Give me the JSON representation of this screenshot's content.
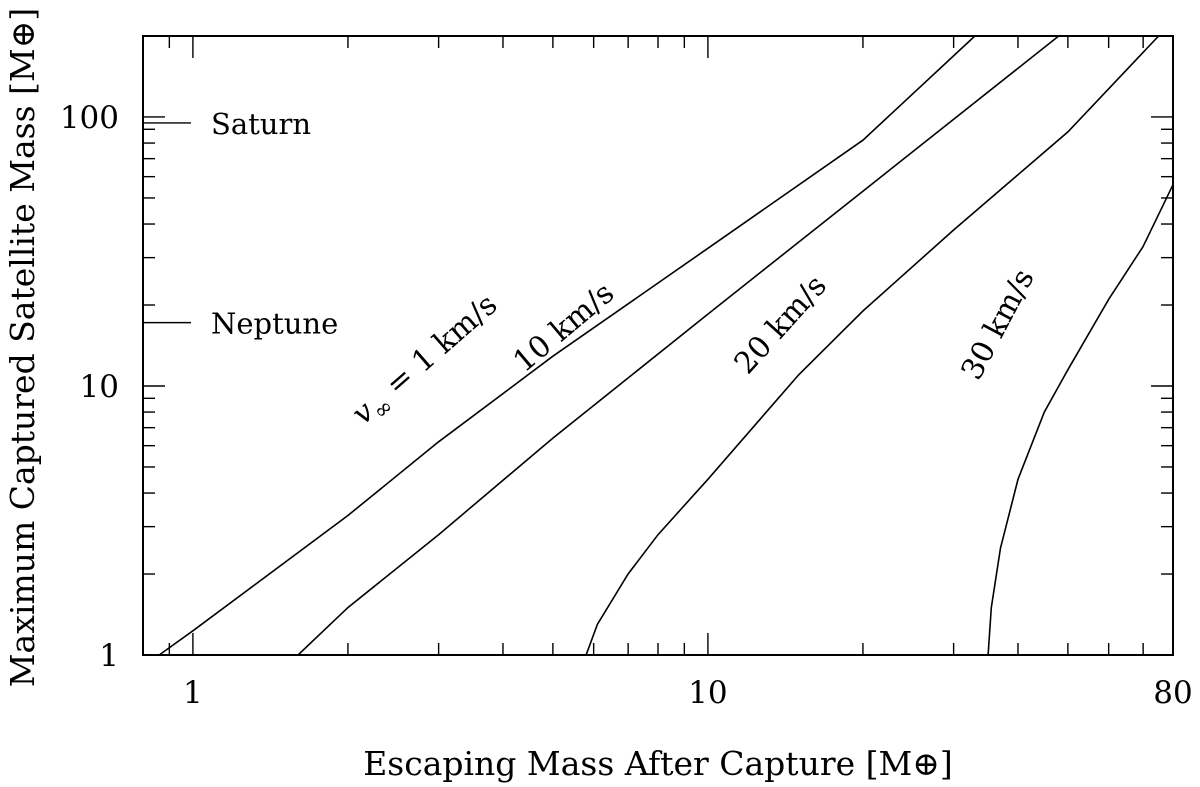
{
  "chart_data": {
    "type": "line",
    "title": "",
    "xlabel": "Escaping Mass After Capture [M⊕]",
    "ylabel": "Maximum Captured Satellite Mass [M⊕]",
    "x_scale": "log",
    "y_scale": "log",
    "xlim": [
      0.8,
      80
    ],
    "ylim": [
      1,
      200
    ],
    "x_ticks": [
      {
        "value": 1,
        "label": "1"
      },
      {
        "value": 10,
        "label": "10"
      },
      {
        "value": 80,
        "label": "80"
      }
    ],
    "y_ticks": [
      {
        "value": 1,
        "label": "1"
      },
      {
        "value": 10,
        "label": "10"
      },
      {
        "value": 100,
        "label": "100"
      }
    ],
    "grid": false,
    "legend": "none",
    "series": [
      {
        "name": "v∞ = 1 km/s",
        "label_prefix": "v",
        "label_sub": "∞",
        "label_suffix": " = 1 km/s",
        "label_at": {
          "x": 2.9,
          "y": 11.8,
          "angle": -41
        },
        "points": [
          [
            0.86,
            1.0
          ],
          [
            1.0,
            1.23
          ],
          [
            2.0,
            3.3
          ],
          [
            3.0,
            6.2
          ],
          [
            5.0,
            12.9
          ],
          [
            10.0,
            32.5
          ],
          [
            20.0,
            82.0
          ],
          [
            33.0,
            200.0
          ]
        ]
      },
      {
        "name": "10 km/s",
        "label_prefix": "",
        "label_sub": "",
        "label_suffix": "10 km/s",
        "label_at": {
          "x": 5.4,
          "y": 15.5,
          "angle": -40
        },
        "points": [
          [
            1.6,
            1.0
          ],
          [
            2.0,
            1.5
          ],
          [
            3.0,
            2.8
          ],
          [
            5.0,
            6.4
          ],
          [
            10.0,
            18.5
          ],
          [
            20.0,
            53.0
          ],
          [
            48.0,
            200.0
          ]
        ]
      },
      {
        "name": "20 km/s",
        "label_prefix": "",
        "label_sub": "",
        "label_suffix": "20 km/s",
        "label_at": {
          "x": 14.3,
          "y": 16.0,
          "angle": -48
        },
        "points": [
          [
            5.8,
            1.0
          ],
          [
            6.1,
            1.3
          ],
          [
            7.0,
            2.0
          ],
          [
            8.0,
            2.8
          ],
          [
            10.0,
            4.5
          ],
          [
            15.0,
            11.0
          ],
          [
            20.0,
            19.0
          ],
          [
            30.0,
            38.0
          ],
          [
            50.0,
            88.0
          ],
          [
            75.0,
            200.0
          ]
        ]
      },
      {
        "name": "30 km/s",
        "label_prefix": "",
        "label_sub": "",
        "label_suffix": "30 km/s",
        "label_at": {
          "x": 38.0,
          "y": 16.3,
          "angle": -62
        },
        "points": [
          [
            35.0,
            1.0
          ],
          [
            35.5,
            1.5
          ],
          [
            37.0,
            2.5
          ],
          [
            40.0,
            4.5
          ],
          [
            45.0,
            8.0
          ],
          [
            50.0,
            11.5
          ],
          [
            60.0,
            21.0
          ],
          [
            70.0,
            33.0
          ],
          [
            80.0,
            56.0
          ]
        ]
      }
    ],
    "annotations": [
      {
        "text": "Saturn",
        "y": 95
      },
      {
        "text": "Neptune",
        "y": 17.2
      }
    ]
  }
}
